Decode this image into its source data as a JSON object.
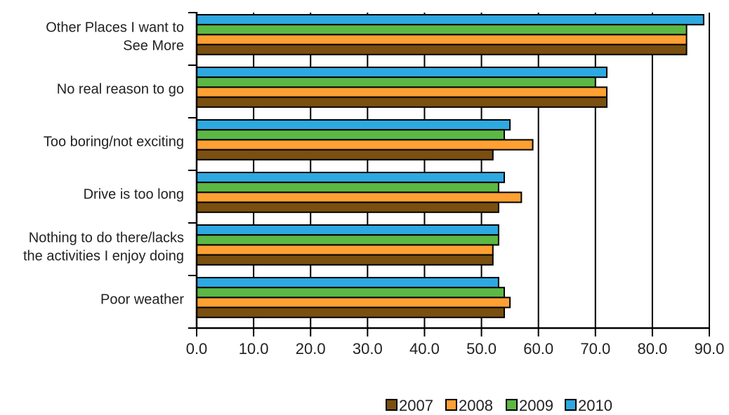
{
  "chart_data": {
    "type": "bar",
    "orientation": "horizontal",
    "categories": [
      "Other Places I want to See More",
      "No real reason to go",
      "Too boring/not exciting",
      "Drive is too long",
      "Nothing to do there/lacks the activities I enjoy doing",
      "Poor weather"
    ],
    "category_lines": [
      [
        "Other Places I want to",
        "See More"
      ],
      [
        "No real reason to go"
      ],
      [
        "Too boring/not exciting"
      ],
      [
        "Drive is too long"
      ],
      [
        "Nothing to do there/lacks",
        "the activities I enjoy doing"
      ],
      [
        "Poor weather"
      ]
    ],
    "series": [
      {
        "name": "2007",
        "color": "#7a4f0f",
        "values": [
          86,
          72,
          52,
          53,
          52,
          54
        ]
      },
      {
        "name": "2008",
        "color": "#ffa033",
        "values": [
          86,
          72,
          59,
          57,
          52,
          55
        ]
      },
      {
        "name": "2009",
        "color": "#5cb844",
        "values": [
          86,
          70,
          54,
          53,
          53,
          54
        ]
      },
      {
        "name": "2010",
        "color": "#2ea8e0",
        "values": [
          89,
          72,
          55,
          54,
          53,
          53
        ]
      }
    ],
    "xlim": [
      0,
      90
    ],
    "xticks": [
      0,
      10,
      20,
      30,
      40,
      50,
      60,
      70,
      80,
      90
    ],
    "tick_labels": [
      "0.0",
      "10.0",
      "20.0",
      "30.0",
      "40.0",
      "50.0",
      "60.0",
      "70.0",
      "80.0",
      "90.0"
    ],
    "grid": "vertical",
    "legend_position": "bottom-right"
  }
}
